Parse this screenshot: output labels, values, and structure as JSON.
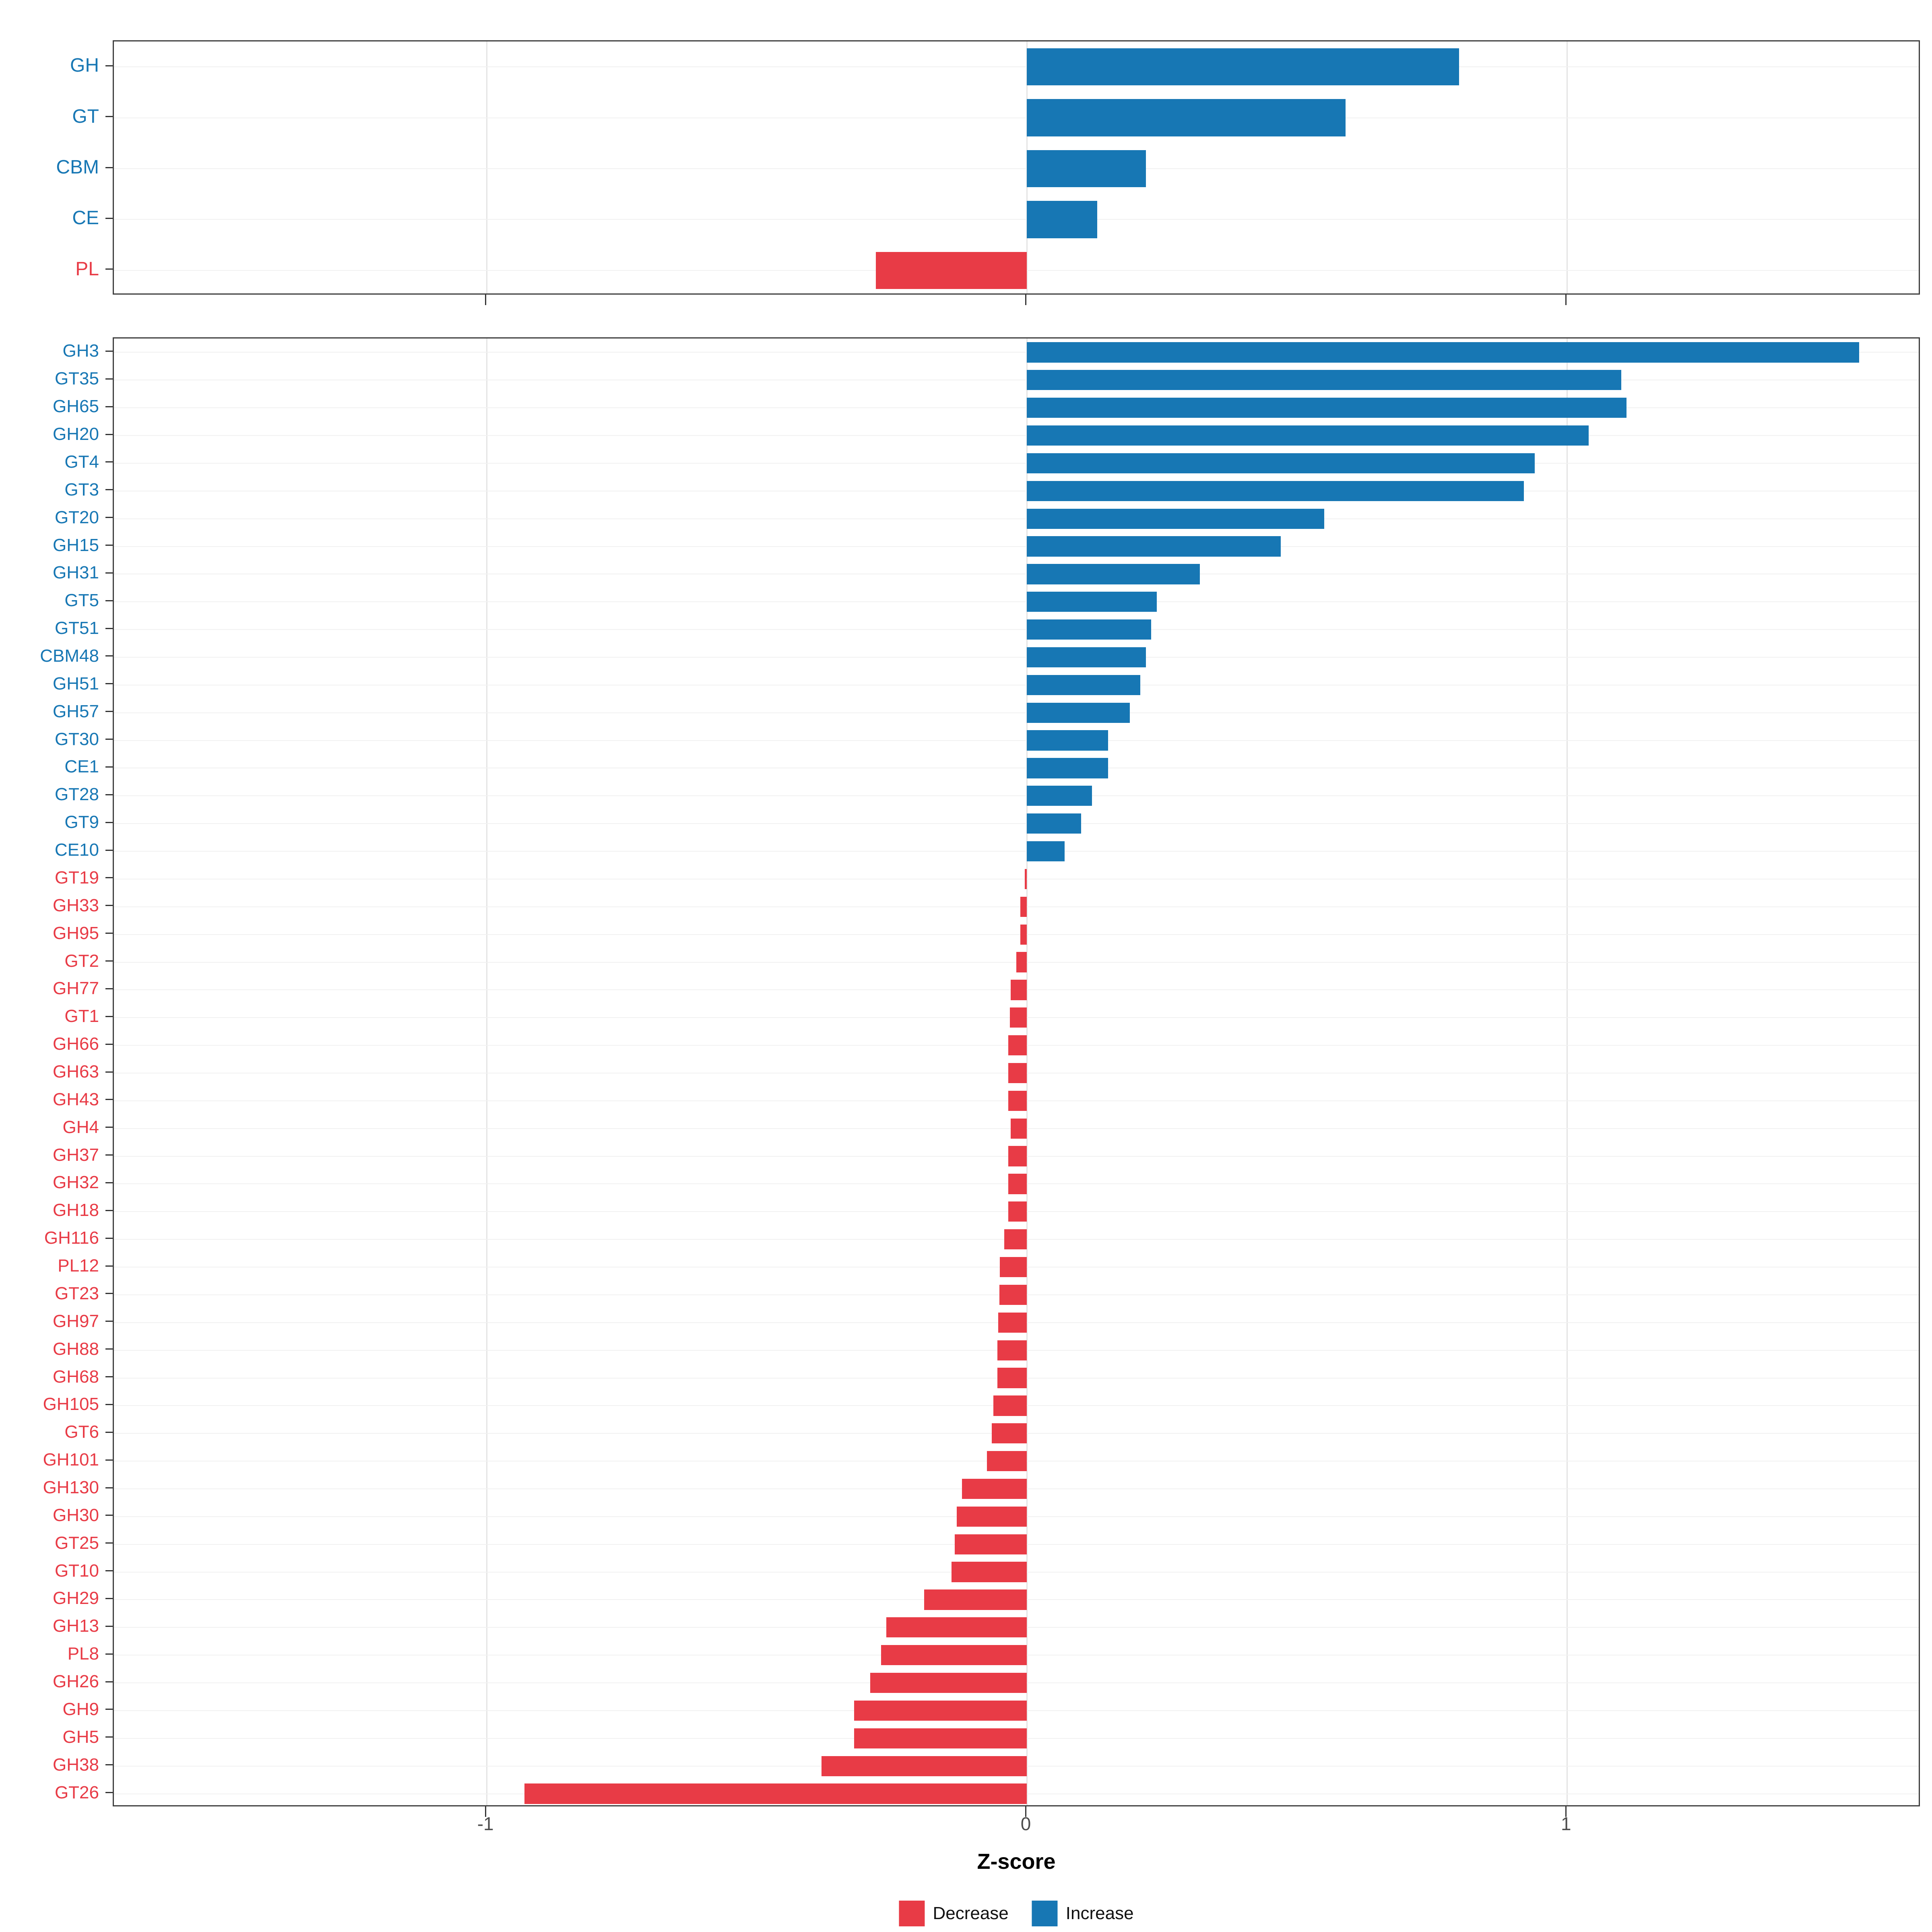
{
  "colors": {
    "decrease": "#e83b46",
    "increase": "#1777b4",
    "gridline": "#e4e4e4",
    "panel_border": "#3f3f3f"
  },
  "axis": {
    "label": "Z-score",
    "ticks": [
      -1,
      0,
      1
    ],
    "tick_labels": [
      "-1",
      "0",
      "1"
    ]
  },
  "legend": {
    "items": [
      {
        "label": "Decrease",
        "color": "#e83b46"
      },
      {
        "label": "Increase",
        "color": "#1777b4"
      }
    ]
  },
  "chart_data": [
    {
      "type": "bar",
      "orientation": "horizontal",
      "title": "",
      "xlabel": "Z-score",
      "xlim": [
        -1.69,
        1.655
      ],
      "grid": true,
      "legend_position": "bottom",
      "categories": [
        "GH",
        "GT",
        "CBM",
        "CE",
        "PL"
      ],
      "values": [
        0.8,
        0.59,
        0.22,
        0.13,
        -0.28
      ]
    },
    {
      "type": "bar",
      "orientation": "horizontal",
      "title": "",
      "xlabel": "Z-score",
      "xlim": [
        -1.69,
        1.655
      ],
      "grid": true,
      "legend_position": "bottom",
      "categories": [
        "GH3",
        "GT35",
        "GH65",
        "GH20",
        "GT4",
        "GT3",
        "GT20",
        "GH15",
        "GH31",
        "GT5",
        "GT51",
        "CBM48",
        "GH51",
        "GH57",
        "GT30",
        "CE1",
        "GT28",
        "GT9",
        "CE10",
        "GT19",
        "GH33",
        "GH95",
        "GT2",
        "GH77",
        "GT1",
        "GH66",
        "GH63",
        "GH43",
        "GH4",
        "GH37",
        "GH32",
        "GH18",
        "GH116",
        "PL12",
        "GT23",
        "GH97",
        "GH88",
        "GH68",
        "GH105",
        "GT6",
        "GH101",
        "GH130",
        "GH30",
        "GT25",
        "GT10",
        "GH29",
        "GH13",
        "PL8",
        "GH26",
        "GH9",
        "GH5",
        "GH38",
        "GT26"
      ],
      "values": [
        1.54,
        1.1,
        1.11,
        1.04,
        0.94,
        0.92,
        0.55,
        0.47,
        0.32,
        0.24,
        0.23,
        0.22,
        0.21,
        0.19,
        0.15,
        0.15,
        0.12,
        0.1,
        0.07,
        -0.004,
        -0.012,
        -0.012,
        -0.02,
        -0.03,
        -0.032,
        -0.035,
        -0.035,
        -0.035,
        -0.03,
        -0.035,
        -0.035,
        -0.035,
        -0.042,
        -0.05,
        -0.051,
        -0.053,
        -0.055,
        -0.055,
        -0.062,
        -0.065,
        -0.074,
        -0.12,
        -0.13,
        -0.134,
        -0.14,
        -0.19,
        -0.26,
        -0.27,
        -0.29,
        -0.32,
        -0.32,
        -0.38,
        -0.93
      ]
    }
  ]
}
